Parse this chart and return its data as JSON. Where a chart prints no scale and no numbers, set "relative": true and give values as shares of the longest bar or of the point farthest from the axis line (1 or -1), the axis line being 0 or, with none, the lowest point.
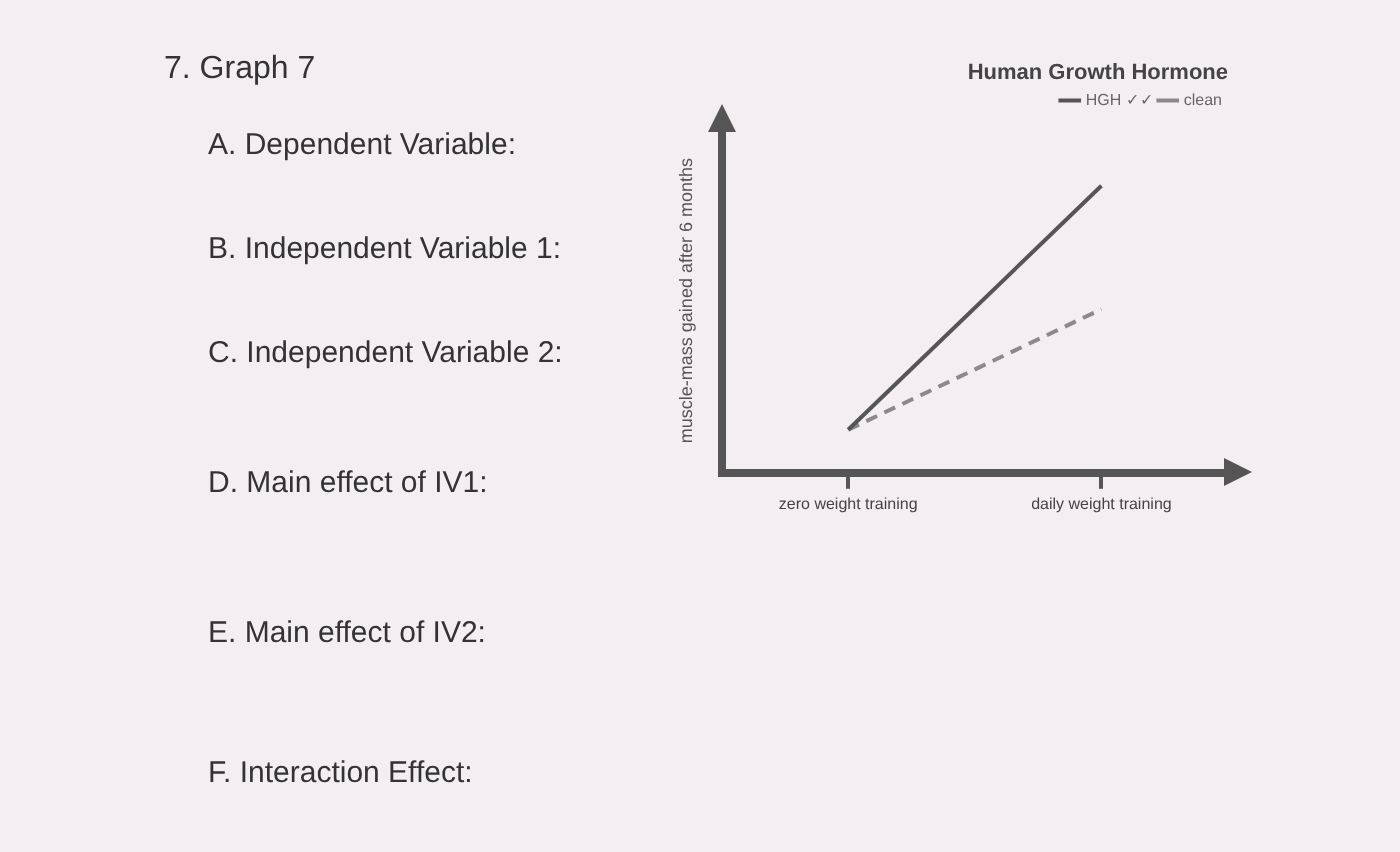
{
  "chart_data": {
    "type": "line",
    "title": "Human Growth Hormone",
    "ylabel": "muscle-mass gained after 6 months",
    "relative": true,
    "categories": [
      "zero weight training",
      "daily weight training"
    ],
    "series": [
      {
        "name": "HGH ✓✓",
        "color": "#555555",
        "values": [
          0.15,
          1
        ],
        "line_style": "solid"
      },
      {
        "name": "clean",
        "color": "#8a8a8a",
        "values": [
          0.15,
          0.57
        ],
        "line_style": "dashed"
      }
    ],
    "legend": "top right",
    "grid": false,
    "marker": "none",
    "annotations": [
      "7. Graph 7",
      "A. Dependent Variable:",
      "B. Independent Variable 1:",
      "C. Independent Variable 2:",
      "D. Main effect of IV1:",
      "E. Main effect of IV2:",
      "F. Interaction Effect:"
    ]
  }
}
